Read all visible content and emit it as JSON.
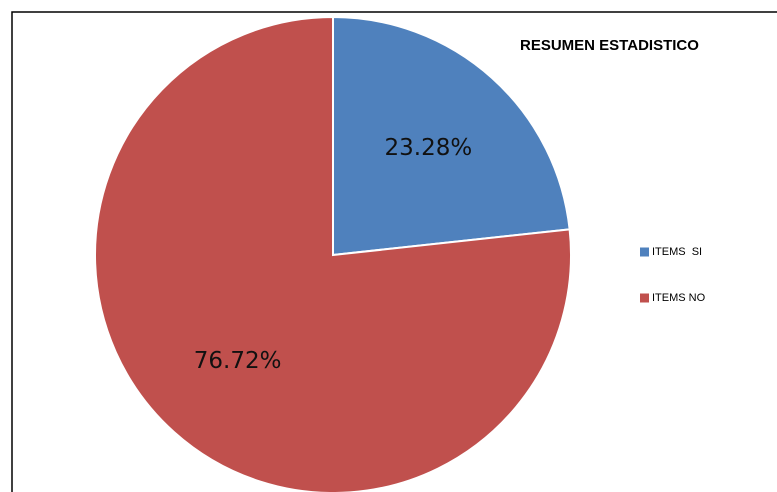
{
  "chart_data": {
    "type": "pie",
    "title": "RESUMEN ESTADISTICO",
    "categories": [
      "ITEMS  SI",
      "ITEMS NO"
    ],
    "values": [
      23.28,
      76.72
    ],
    "value_labels": [
      "23.28%",
      "76.72%"
    ],
    "colors": [
      "#4f81bd",
      "#c0504d"
    ],
    "legend": "right"
  }
}
